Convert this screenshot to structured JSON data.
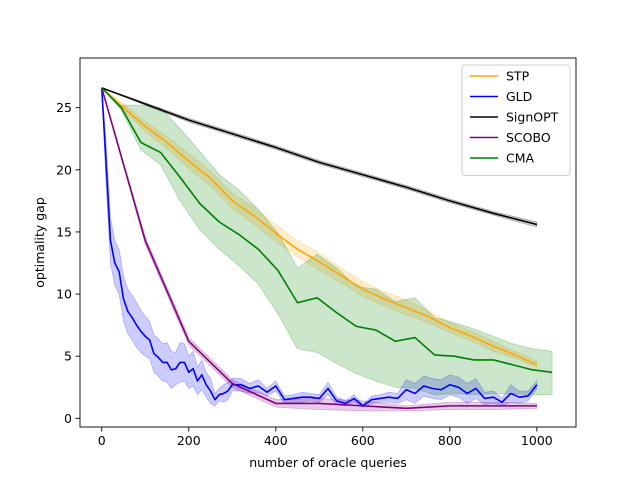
{
  "chart_data": {
    "type": "line",
    "title": "",
    "xlabel": "number of oracle queries",
    "ylabel": "optimality gap",
    "xlim": [
      -50,
      1090
    ],
    "ylim": [
      -0.7,
      29
    ],
    "xticks": [
      0,
      200,
      400,
      600,
      800,
      1000
    ],
    "yticks": [
      0,
      5,
      10,
      15,
      20,
      25
    ],
    "grid": false,
    "legend_position": "top-right",
    "series": [
      {
        "name": "STP",
        "color": "#ffa500",
        "x": [
          0,
          50,
          100,
          150,
          200,
          250,
          300,
          350,
          400,
          450,
          500,
          550,
          600,
          650,
          700,
          750,
          800,
          850,
          900,
          950,
          1000
        ],
        "y": [
          26.6,
          25.0,
          23.5,
          22.2,
          20.7,
          19.3,
          17.5,
          16.3,
          14.9,
          13.6,
          12.6,
          11.5,
          10.4,
          9.6,
          8.9,
          8.2,
          7.3,
          6.6,
          5.8,
          5.1,
          4.3
        ],
        "lower": [
          26.6,
          24.7,
          23.1,
          21.7,
          20.1,
          18.7,
          16.9,
          15.6,
          14.2,
          13.0,
          11.9,
          10.9,
          9.8,
          9.0,
          8.3,
          7.7,
          6.9,
          6.2,
          5.4,
          4.8,
          4.1
        ],
        "upper": [
          26.6,
          25.3,
          23.9,
          22.7,
          21.3,
          19.9,
          18.1,
          17.0,
          15.6,
          14.3,
          13.3,
          12.1,
          11.0,
          10.2,
          9.5,
          8.7,
          7.7,
          7.0,
          6.2,
          5.4,
          4.6
        ]
      },
      {
        "name": "GLD",
        "color": "#0000ff",
        "x": [
          0,
          10,
          20,
          30,
          40,
          50,
          60,
          70,
          80,
          90,
          100,
          110,
          120,
          130,
          140,
          150,
          160,
          170,
          180,
          190,
          200,
          210,
          220,
          230,
          240,
          250,
          260,
          270,
          280,
          290,
          300,
          320,
          340,
          360,
          380,
          400,
          420,
          440,
          460,
          480,
          500,
          520,
          540,
          560,
          580,
          600,
          620,
          640,
          660,
          680,
          700,
          720,
          740,
          760,
          780,
          800,
          820,
          840,
          860,
          880,
          900,
          920,
          940,
          960,
          980,
          1000
        ],
        "y": [
          26.6,
          20.5,
          14.3,
          12.5,
          11.8,
          9.6,
          8.6,
          8.1,
          7.5,
          7.0,
          6.6,
          6.3,
          5.2,
          4.9,
          4.5,
          4.5,
          3.9,
          4.0,
          4.5,
          4.5,
          3.7,
          4.0,
          3.0,
          3.5,
          2.7,
          2.2,
          1.5,
          1.9,
          2.0,
          2.2,
          2.7,
          2.7,
          2.4,
          2.6,
          2.1,
          2.6,
          1.5,
          1.6,
          1.7,
          1.7,
          1.6,
          2.4,
          1.4,
          1.2,
          1.6,
          1.0,
          1.5,
          1.6,
          1.7,
          1.6,
          2.3,
          2.0,
          2.6,
          2.4,
          2.3,
          2.7,
          2.5,
          2.0,
          2.4,
          1.6,
          1.7,
          1.3,
          2.0,
          1.7,
          1.8,
          2.7
        ],
        "lower": [
          26.6,
          18.7,
          12.5,
          10.7,
          10.0,
          7.8,
          6.8,
          6.3,
          5.7,
          5.3,
          5.0,
          4.8,
          3.7,
          3.4,
          3.0,
          2.9,
          2.4,
          2.7,
          2.9,
          3.0,
          2.4,
          2.6,
          1.9,
          2.3,
          1.7,
          1.2,
          1.0,
          1.4,
          1.3,
          1.5,
          2.2,
          2.2,
          2.0,
          2.1,
          1.8,
          2.2,
          1.2,
          1.3,
          1.3,
          1.4,
          1.3,
          1.9,
          1.1,
          1.0,
          1.3,
          0.9,
          1.2,
          1.3,
          1.3,
          1.2,
          1.5,
          1.2,
          1.8,
          1.6,
          1.5,
          1.9,
          1.7,
          1.2,
          1.6,
          1.1,
          1.2,
          1.0,
          1.3,
          1.2,
          1.4,
          2.4
        ],
        "upper": [
          26.6,
          22.3,
          16.1,
          14.3,
          13.6,
          11.4,
          10.4,
          9.9,
          9.3,
          8.7,
          8.2,
          7.8,
          6.7,
          6.4,
          6.0,
          6.1,
          5.4,
          5.3,
          6.1,
          6.0,
          5.0,
          5.4,
          4.1,
          4.7,
          3.7,
          3.2,
          2.0,
          2.4,
          2.7,
          2.9,
          3.2,
          3.2,
          2.8,
          3.1,
          2.4,
          3.0,
          1.8,
          1.9,
          2.1,
          2.0,
          1.9,
          2.9,
          1.7,
          1.4,
          1.9,
          1.1,
          1.8,
          1.9,
          2.1,
          2.0,
          3.1,
          2.8,
          3.4,
          3.2,
          3.1,
          3.5,
          3.3,
          2.8,
          3.2,
          2.1,
          2.2,
          1.6,
          2.7,
          2.2,
          2.2,
          3.0
        ]
      },
      {
        "name": "SignOPT",
        "color": "#000000",
        "x": [
          0,
          100,
          200,
          300,
          400,
          500,
          600,
          700,
          800,
          900,
          1000
        ],
        "y": [
          26.6,
          25.3,
          24.0,
          22.9,
          21.8,
          20.6,
          19.6,
          18.6,
          17.5,
          16.5,
          15.6
        ],
        "lower": [
          26.6,
          25.2,
          23.85,
          22.75,
          21.65,
          20.45,
          19.45,
          18.45,
          17.35,
          16.35,
          15.4
        ],
        "upper": [
          26.6,
          25.4,
          24.15,
          23.05,
          21.95,
          20.75,
          19.75,
          18.75,
          17.65,
          16.65,
          15.8
        ]
      },
      {
        "name": "SCOBO",
        "color": "#800080",
        "x": [
          0,
          100,
          200,
          300,
          400,
          500,
          600,
          700,
          800,
          900,
          1000
        ],
        "y": [
          26.6,
          14.3,
          6.2,
          2.8,
          1.2,
          1.2,
          1.0,
          0.8,
          1.0,
          1.0,
          1.0
        ],
        "lower": [
          26.6,
          14.0,
          5.9,
          2.5,
          0.9,
          0.7,
          0.6,
          0.6,
          0.7,
          0.7,
          0.8
        ],
        "upper": [
          26.6,
          14.6,
          6.5,
          3.1,
          1.5,
          1.6,
          1.4,
          1.0,
          1.3,
          1.3,
          1.2
        ]
      },
      {
        "name": "CMA",
        "color": "#008000",
        "x": [
          0,
          45,
          90,
          135,
          180,
          225,
          270,
          315,
          360,
          405,
          450,
          495,
          540,
          585,
          630,
          675,
          720,
          765,
          810,
          855,
          900,
          945,
          990,
          1035
        ],
        "y": [
          26.6,
          25.0,
          22.2,
          21.4,
          19.4,
          17.3,
          15.8,
          14.8,
          13.6,
          11.9,
          9.3,
          9.7,
          8.5,
          7.4,
          7.1,
          6.2,
          6.5,
          5.1,
          5.0,
          4.7,
          4.7,
          4.3,
          3.9,
          3.7
        ],
        "lower": [
          26.6,
          24.8,
          21.6,
          20.4,
          17.5,
          15.2,
          13.6,
          12.3,
          10.8,
          8.4,
          5.6,
          5.3,
          4.4,
          3.6,
          3.0,
          2.5,
          2.4,
          1.9,
          2.0,
          1.9,
          2.0,
          2.0,
          1.9,
          1.9
        ],
        "upper": [
          26.6,
          25.2,
          25.2,
          25.0,
          23.3,
          21.5,
          19.6,
          18.4,
          16.8,
          14.9,
          12.1,
          13.2,
          12.1,
          10.6,
          10.4,
          9.4,
          9.7,
          8.1,
          7.7,
          7.2,
          6.6,
          6.0,
          5.6,
          5.4
        ]
      }
    ]
  }
}
